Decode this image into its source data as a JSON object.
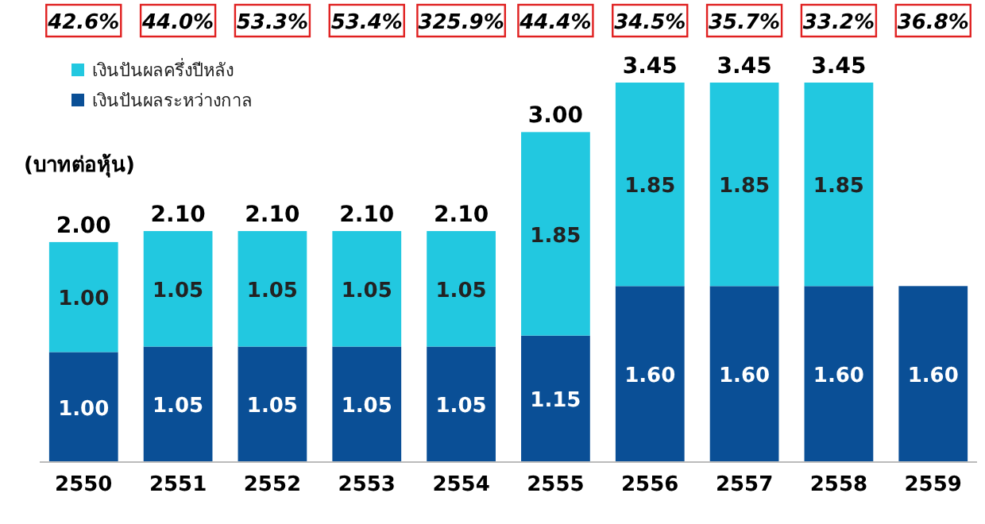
{
  "chart_data": {
    "type": "bar",
    "stacked": true,
    "ylabel": "(บาทต่อหุ้น)",
    "categories": [
      "2550",
      "2551",
      "2552",
      "2553",
      "2554",
      "2555",
      "2556",
      "2557",
      "2558",
      "2559"
    ],
    "series": [
      {
        "name": "เงินปันผลระหว่างกาล",
        "color": "#0a4f96",
        "values": [
          1.0,
          1.05,
          1.05,
          1.05,
          1.05,
          1.15,
          1.6,
          1.6,
          1.6,
          1.6
        ],
        "value_labels": [
          "1.00",
          "1.05",
          "1.05",
          "1.05",
          "1.05",
          "1.15",
          "1.60",
          "1.60",
          "1.60",
          "1.60"
        ]
      },
      {
        "name": "เงินปันผลครึ่งปีหลัง",
        "color": "#22c8e0",
        "values": [
          1.0,
          1.05,
          1.05,
          1.05,
          1.05,
          1.85,
          1.85,
          1.85,
          1.85,
          null
        ],
        "value_labels": [
          "1.00",
          "1.05",
          "1.05",
          "1.05",
          "1.05",
          "1.85",
          "1.85",
          "1.85",
          "1.85",
          null
        ]
      }
    ],
    "totals": [
      "2.00",
      "2.10",
      "2.10",
      "2.10",
      "2.10",
      "3.00",
      "3.45",
      "3.45",
      "3.45",
      null
    ],
    "legend": "top left",
    "annotations": [
      "42.6%",
      "44.0%",
      "53.3%",
      "53.4%",
      "325.9%",
      "44.4%",
      "34.5%",
      "35.7%",
      "33.2%",
      "36.8%"
    ]
  }
}
